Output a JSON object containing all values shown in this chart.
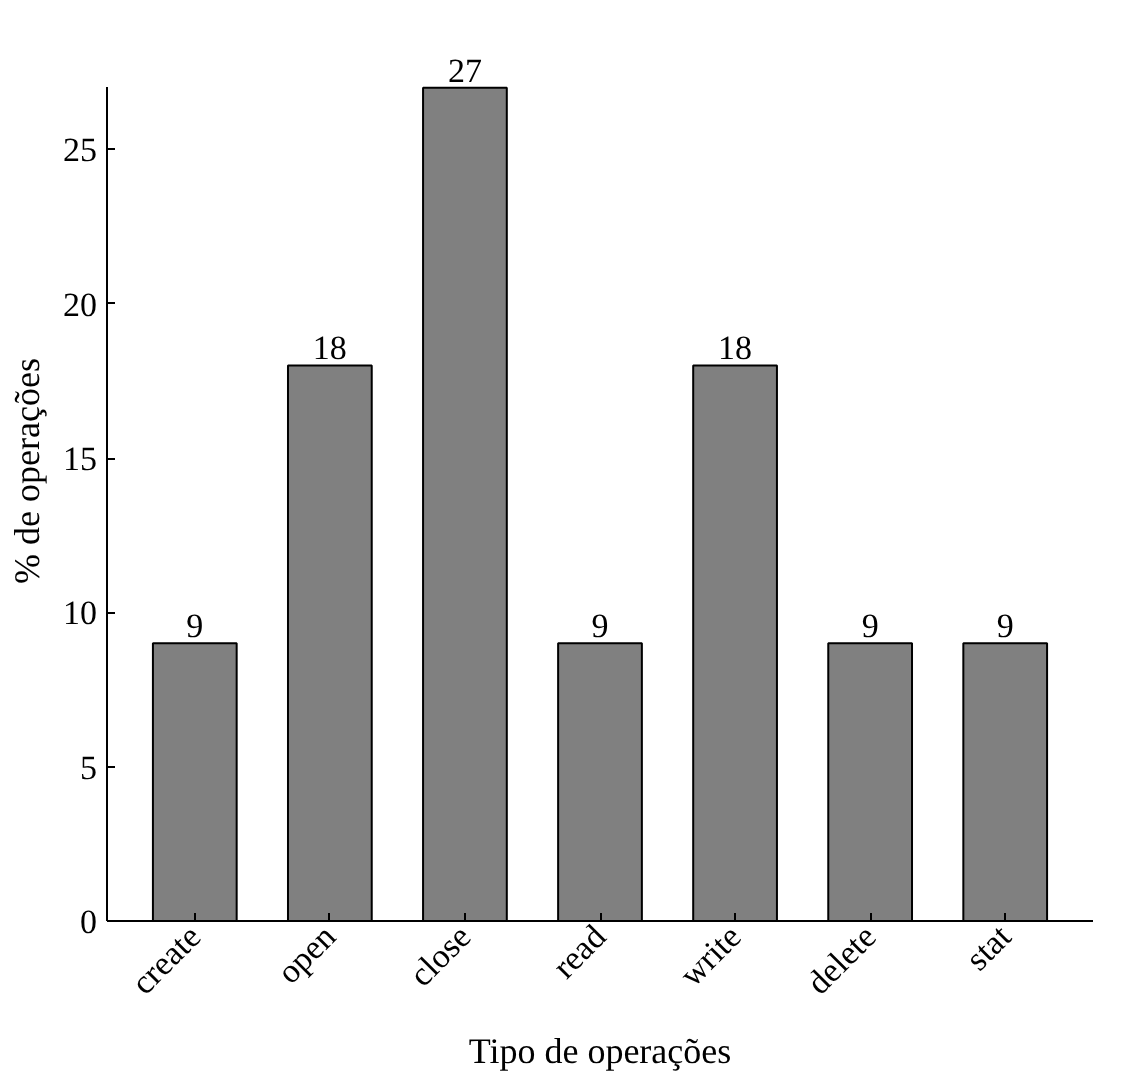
{
  "chart_data": {
    "type": "bar",
    "xlabel": "Tipo de operações",
    "ylabel": "% de operações",
    "categories": [
      "create",
      "open",
      "close",
      "read",
      "write",
      "delete",
      "stat"
    ],
    "values": [
      9,
      18,
      27,
      9,
      18,
      9,
      9
    ],
    "color": "#808080",
    "ylim": [
      0,
      27
    ],
    "yticks": [
      0,
      5,
      10,
      15,
      20,
      25
    ],
    "data_labels": true,
    "grid": false
  }
}
